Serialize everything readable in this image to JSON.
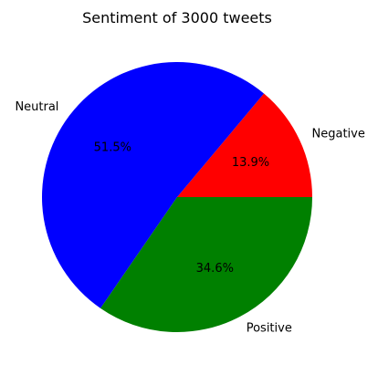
{
  "chart_data": {
    "type": "pie",
    "title": "Sentiment of 3000 tweets",
    "slices": [
      {
        "label": "Negative",
        "value": 13.9,
        "pct_label": "13.9%",
        "color": "#ff0000"
      },
      {
        "label": "Neutral",
        "value": 51.5,
        "pct_label": "51.5%",
        "color": "#0000ff"
      },
      {
        "label": "Positive",
        "value": 34.6,
        "pct_label": "34.6%",
        "color": "#008000"
      }
    ],
    "start_angle_deg": 0,
    "direction": "counterclockwise"
  }
}
